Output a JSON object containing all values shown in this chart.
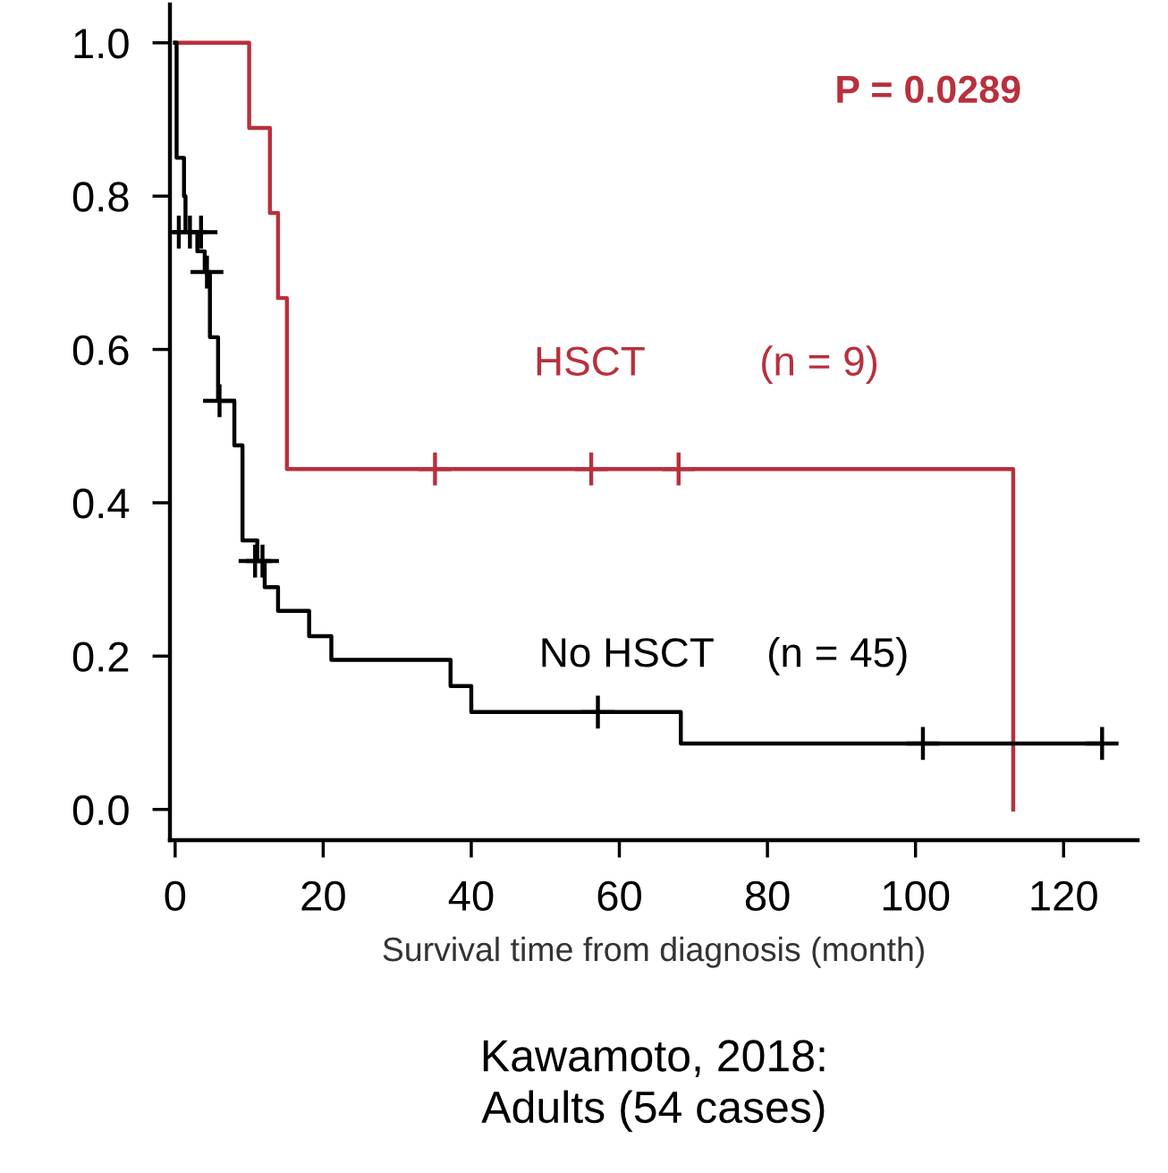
{
  "chart_data": {
    "type": "step",
    "xlabel": "Survival time from diagnosis (month)",
    "xlim": [
      -0.7,
      130
    ],
    "ylim": [
      -0.04,
      1.05
    ],
    "xticks": [
      0,
      20,
      40,
      60,
      80,
      100,
      120
    ],
    "yticks": [
      {
        "value": 0,
        "label": "0.0"
      },
      0.2,
      0.4,
      0.6,
      0.8,
      {
        "value": 1,
        "label": "1.0"
      }
    ],
    "grid": false,
    "legend": false,
    "series": [
      {
        "name": "HSCT",
        "color": "#b8303c",
        "x": [
          0,
          10.0,
          12.8,
          13.9,
          15.1,
          113.2
        ],
        "values": [
          1.0,
          0.889,
          0.778,
          0.667,
          0.444,
          0
        ]
      },
      {
        "type": "scatter",
        "marker": "cross",
        "color": "#b8303c",
        "x": [
          35.1,
          56.2,
          68.0
        ],
        "values": [
          0.444,
          0.444,
          0.444
        ]
      },
      {
        "name": "No HSCT",
        "color": "#000000",
        "x": [
          0,
          0.2,
          1.2,
          1.4,
          3.0,
          4.0,
          4.7,
          5.8,
          8.0,
          9.1,
          11.1,
          12.1,
          13.9,
          18.1,
          21.1,
          37.2,
          40.0,
          68.3,
          125.2
        ],
        "values": [
          1.0,
          0.85,
          0.8,
          0.753,
          0.728,
          0.701,
          0.616,
          0.533,
          0.475,
          0.351,
          0.324,
          0.29,
          0.259,
          0.226,
          0.195,
          0.161,
          0.127,
          0.086,
          0.086
        ]
      },
      {
        "type": "scatter",
        "marker": "cross",
        "color": "#000000",
        "x": [
          0.5,
          2.0,
          3.5,
          4.3,
          6.0,
          10.8,
          11.8,
          57.1,
          101.0,
          125.2
        ],
        "values": [
          0.753,
          0.753,
          0.753,
          0.701,
          0.533,
          0.324,
          0.324,
          0.127,
          0.086,
          0.086
        ]
      }
    ],
    "annotations": [
      "P = 0.0289",
      "(n = 9)",
      "(n = 45)",
      "Kawamoto, 2018:\nAdults (54 cases)"
    ]
  }
}
